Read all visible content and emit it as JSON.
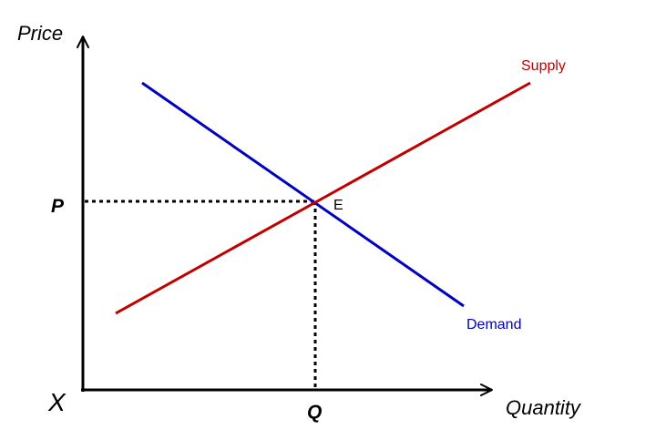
{
  "axes": {
    "y_label": "Price",
    "x_label": "Quantity",
    "origin_label": "X"
  },
  "equilibrium": {
    "price_label": "P",
    "quantity_label": "Q",
    "point_label": "E"
  },
  "curves": {
    "supply": {
      "label": "Supply",
      "color": "#c00000"
    },
    "demand": {
      "label": "Demand",
      "color": "#0000c0"
    }
  }
}
